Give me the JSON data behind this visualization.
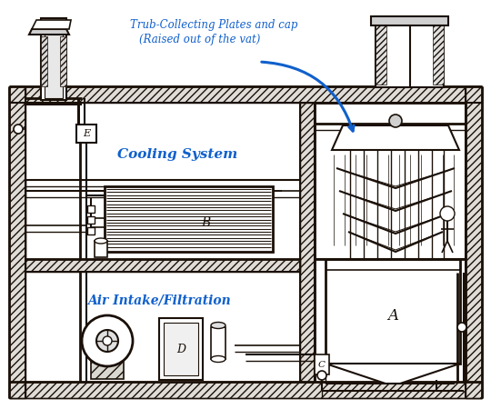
{
  "bg_color": "#ffffff",
  "lc": "#1a1008",
  "blue": "#1060cc",
  "title_line1": "Trub-Collecting Plates and cap",
  "title_line2": "(Raised out of the vat)",
  "label_cooling": "Cooling System",
  "label_air": "Air Intake/Filtration",
  "label_B": "B",
  "label_E": "E",
  "label_A": "A",
  "label_C": "C",
  "label_D": "D"
}
